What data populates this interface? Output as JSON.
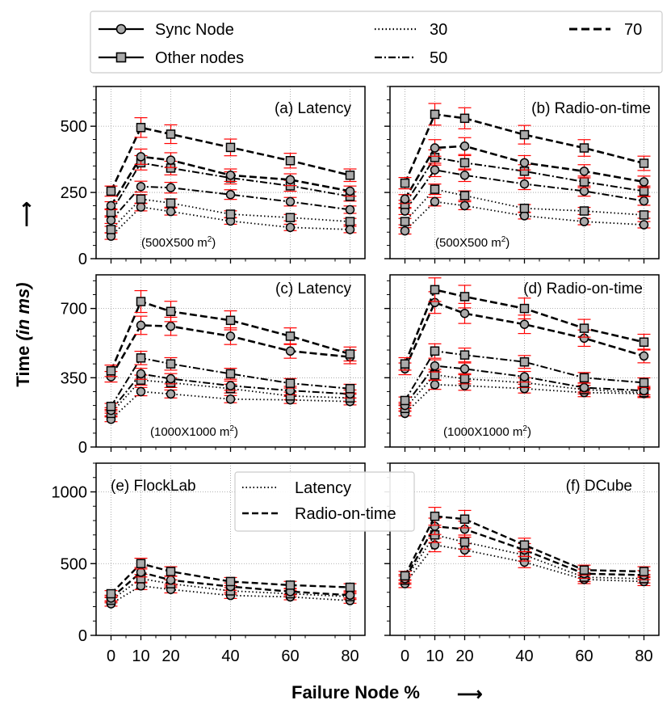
{
  "chart_data": {
    "type": "line",
    "x": [
      0,
      10,
      20,
      40,
      60,
      80
    ],
    "x_ticks": [
      "0",
      "10",
      "20",
      "40",
      "60",
      "80"
    ],
    "xlabel": "Failure Node %",
    "ylabel_main": "Time",
    "ylabel_unit": "(in ms)",
    "arrow": "⟶",
    "legend_top": {
      "sync": "Sync Node",
      "other": "Other nodes",
      "d30": "30",
      "d50": "50",
      "d70": "70"
    },
    "legend_inner": {
      "latency": "Latency",
      "radio": "Radio-on-time"
    },
    "panels": [
      {
        "id": "a",
        "title": "(a) Latency",
        "area": "(500X500 m",
        "area_sup": "2",
        "area_close": ")",
        "ylim": [
          0,
          650
        ],
        "yticks": [
          0,
          250,
          500
        ],
        "ytick_labels": [
          "0",
          "250",
          "500"
        ],
        "series": [
          {
            "name": "30",
            "role": "Sync Node",
            "values": [
              85,
              195,
              178,
              142,
              118,
              110
            ]
          },
          {
            "name": "30",
            "role": "Other nodes",
            "values": [
              110,
              225,
              210,
              168,
              155,
              140
            ]
          },
          {
            "name": "50",
            "role": "Sync Node",
            "values": [
              145,
              272,
              268,
              242,
              215,
              185
            ]
          },
          {
            "name": "50",
            "role": "Other nodes",
            "values": [
              175,
              362,
              342,
              305,
              275,
              235
            ]
          },
          {
            "name": "70",
            "role": "Sync Node",
            "values": [
              200,
              385,
              372,
              315,
              298,
              255
            ]
          },
          {
            "name": "70",
            "role": "Other nodes",
            "values": [
              255,
              495,
              470,
              420,
              370,
              315
            ]
          }
        ]
      },
      {
        "id": "b",
        "title": "(b) Radio-on-time",
        "area": "(500X500 m",
        "area_sup": "2",
        "area_close": ")",
        "ylim": [
          0,
          650
        ],
        "yticks": [
          0,
          250,
          500
        ],
        "ytick_labels": [
          "",
          "",
          ""
        ],
        "series": [
          {
            "name": "30",
            "role": "Sync Node",
            "values": [
              105,
              215,
              200,
              162,
              140,
              128
            ]
          },
          {
            "name": "30",
            "role": "Other nodes",
            "values": [
              140,
              262,
              238,
              190,
              180,
              165
            ]
          },
          {
            "name": "50",
            "role": "Sync Node",
            "values": [
              180,
              335,
              315,
              282,
              255,
              218
            ]
          },
          {
            "name": "50",
            "role": "Other nodes",
            "values": [
              205,
              382,
              362,
              330,
              290,
              255
            ]
          },
          {
            "name": "70",
            "role": "Sync Node",
            "values": [
              225,
              418,
              425,
              362,
              330,
              290
            ]
          },
          {
            "name": "70",
            "role": "Other nodes",
            "values": [
              285,
              545,
              530,
              468,
              418,
              360
            ]
          }
        ]
      },
      {
        "id": "c",
        "title": "(c) Latency",
        "area": "(1000X1000 m",
        "area_sup": "2",
        "area_close": ")",
        "ylim": [
          0,
          870
        ],
        "yticks": [
          0,
          350,
          700
        ],
        "ytick_labels": [
          "0",
          "350",
          "700"
        ],
        "series": [
          {
            "name": "30",
            "role": "Sync Node",
            "values": [
              140,
              280,
              268,
              242,
              238,
              230
            ]
          },
          {
            "name": "30",
            "role": "Other nodes",
            "values": [
              170,
              338,
              325,
              295,
              258,
              248
            ]
          },
          {
            "name": "50",
            "role": "Sync Node",
            "values": [
              185,
              370,
              345,
              310,
              285,
              268
            ]
          },
          {
            "name": "50",
            "role": "Other nodes",
            "values": [
              205,
              450,
              420,
              370,
              322,
              295
            ]
          },
          {
            "name": "70",
            "role": "Sync Node",
            "values": [
              355,
              615,
              610,
              560,
              485,
              455
            ]
          },
          {
            "name": "70",
            "role": "Other nodes",
            "values": [
              385,
              735,
              685,
              640,
              560,
              470
            ]
          }
        ]
      },
      {
        "id": "d",
        "title": "(d) Radio-on-time",
        "area": "(1000X1000 m",
        "area_sup": "2",
        "area_close": ")",
        "ylim": [
          0,
          870
        ],
        "yticks": [
          0,
          350,
          700
        ],
        "ytick_labels": [
          "",
          "",
          ""
        ],
        "series": [
          {
            "name": "30",
            "role": "Sync Node",
            "values": [
              170,
              315,
              310,
              295,
              275,
              270
            ]
          },
          {
            "name": "30",
            "role": "Other nodes",
            "values": [
              195,
              365,
              345,
              325,
              290,
              275
            ]
          },
          {
            "name": "50",
            "role": "Sync Node",
            "values": [
              210,
              410,
              395,
              355,
              300,
              285
            ]
          },
          {
            "name": "50",
            "role": "Other nodes",
            "values": [
              235,
              485,
              465,
              430,
              350,
              325
            ]
          },
          {
            "name": "70",
            "role": "Sync Node",
            "values": [
              395,
              730,
              675,
              620,
              550,
              460
            ]
          },
          {
            "name": "70",
            "role": "Other nodes",
            "values": [
              420,
              795,
              760,
              700,
              600,
              530
            ]
          }
        ]
      },
      {
        "id": "e",
        "title": "(e) FlockLab",
        "ylim": [
          0,
          1200
        ],
        "yticks": [
          0,
          500,
          1000
        ],
        "ytick_labels": [
          "0",
          "500",
          "1000"
        ],
        "series": [
          {
            "name": "Latency",
            "role": "Sync Node",
            "values": [
              220,
              345,
              320,
              278,
              268,
              242
            ]
          },
          {
            "name": "Latency",
            "role": "Other nodes",
            "values": [
              245,
              395,
              360,
              310,
              290,
              270
            ]
          },
          {
            "name": "Radio-on-time",
            "role": "Sync Node",
            "values": [
              260,
              440,
              385,
              340,
              305,
              280
            ]
          },
          {
            "name": "Radio-on-time",
            "role": "Other nodes",
            "values": [
              290,
              500,
              445,
              375,
              350,
              335
            ]
          }
        ]
      },
      {
        "id": "f",
        "title": "(f) DCube",
        "ylim": [
          0,
          1200
        ],
        "yticks": [
          0,
          500,
          1000
        ],
        "ytick_labels": [
          "",
          "",
          ""
        ],
        "series": [
          {
            "name": "Latency",
            "role": "Sync Node",
            "values": [
              360,
              630,
              595,
              510,
              390,
              375
            ]
          },
          {
            "name": "Latency",
            "role": "Other nodes",
            "values": [
              385,
              700,
              650,
              560,
              405,
              395
            ]
          },
          {
            "name": "Radio-on-time",
            "role": "Sync Node",
            "values": [
              395,
              760,
              740,
              595,
              430,
              420
            ]
          },
          {
            "name": "Radio-on-time",
            "role": "Other nodes",
            "values": [
              415,
              830,
              810,
              630,
              455,
              445
            ]
          }
        ]
      }
    ]
  }
}
